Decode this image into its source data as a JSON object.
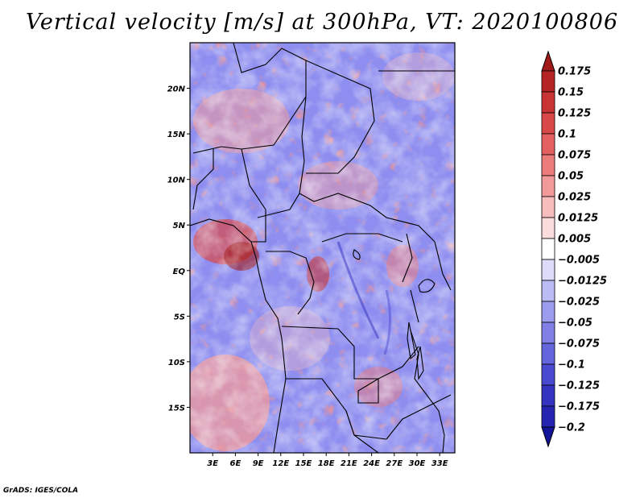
{
  "title": "Vertical velocity [m/s] at 300hPa, VT: 2020100806",
  "credit": "GrADS: IGES/COLA",
  "map": {
    "lat_range": [
      -20,
      25
    ],
    "lon_range": [
      0,
      35
    ],
    "lat_labels": [
      "20N",
      "15N",
      "10N",
      "5N",
      "EQ",
      "5S",
      "10S",
      "15S"
    ],
    "lat_values": [
      20,
      15,
      10,
      5,
      0,
      -5,
      -10,
      -15
    ],
    "lon_labels": [
      "3E",
      "6E",
      "9E",
      "12E",
      "15E",
      "18E",
      "21E",
      "24E",
      "27E",
      "30E",
      "33E"
    ],
    "lon_values": [
      3,
      6,
      9,
      12,
      15,
      18,
      21,
      24,
      27,
      30,
      33
    ]
  },
  "colorbar": {
    "labels": [
      "0.175",
      "0.15",
      "0.125",
      "0.1",
      "0.075",
      "0.05",
      "0.025",
      "0.0125",
      "0.005",
      "−0.005",
      "−0.0125",
      "−0.025",
      "−0.05",
      "−0.075",
      "−0.1",
      "−0.125",
      "−0.175",
      "−0.2"
    ],
    "colors": [
      "#a01818",
      "#b52424",
      "#c83434",
      "#d84848",
      "#e46060",
      "#ec7c7c",
      "#f29a9a",
      "#f7bcbc",
      "#fbdcdc",
      "#ffffff",
      "#dcdcfa",
      "#bcbcf5",
      "#9c9cef",
      "#8080e6",
      "#6464dc",
      "#4a4ad0",
      "#3434c0",
      "#2424b0",
      "#141498"
    ]
  }
}
